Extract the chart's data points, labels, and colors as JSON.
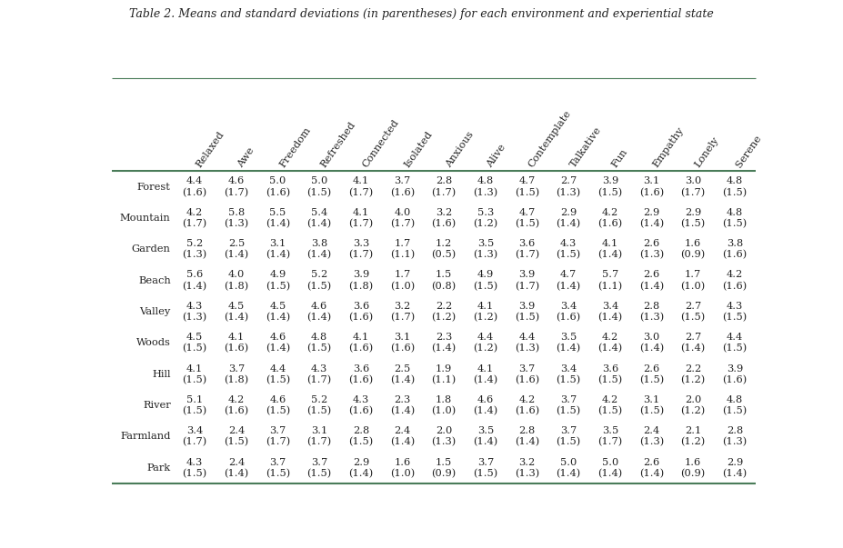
{
  "title": "Table 2. Means and standard deviations (in parentheses) for each environment and experiential state",
  "columns": [
    "Relaxed",
    "Awe",
    "Freedom",
    "Refreshed",
    "Connected",
    "Isolated",
    "Anxious",
    "Alive",
    "Contemplate",
    "Talkative",
    "Fun",
    "Empathy",
    "Lonely",
    "Serene"
  ],
  "rows": [
    "Forest",
    "Mountain",
    "Garden",
    "Beach",
    "Valley",
    "Woods",
    "Hill",
    "River",
    "Farmland",
    "Park"
  ],
  "data": [
    [
      "4.4\n(1.6)",
      "4.6\n(1.7)",
      "5.0\n(1.6)",
      "5.0\n(1.5)",
      "4.1\n(1.7)",
      "3.7\n(1.6)",
      "2.8\n(1.7)",
      "4.8\n(1.3)",
      "4.7\n(1.5)",
      "2.7\n(1.3)",
      "3.9\n(1.5)",
      "3.1\n(1.6)",
      "3.0\n(1.7)",
      "4.8\n(1.5)"
    ],
    [
      "4.2\n(1.7)",
      "5.8\n(1.3)",
      "5.5\n(1.4)",
      "5.4\n(1.4)",
      "4.1\n(1.7)",
      "4.0\n(1.7)",
      "3.2\n(1.6)",
      "5.3\n(1.2)",
      "4.7\n(1.5)",
      "2.9\n(1.4)",
      "4.2\n(1.6)",
      "2.9\n(1.4)",
      "2.9\n(1.5)",
      "4.8\n(1.5)"
    ],
    [
      "5.2\n(1.3)",
      "2.5\n(1.4)",
      "3.1\n(1.4)",
      "3.8\n(1.4)",
      "3.3\n(1.7)",
      "1.7\n(1.1)",
      "1.2\n(0.5)",
      "3.5\n(1.3)",
      "3.6\n(1.7)",
      "4.3\n(1.5)",
      "4.1\n(1.4)",
      "2.6\n(1.3)",
      "1.6\n(0.9)",
      "3.8\n(1.6)"
    ],
    [
      "5.6\n(1.4)",
      "4.0\n(1.8)",
      "4.9\n(1.5)",
      "5.2\n(1.5)",
      "3.9\n(1.8)",
      "1.7\n(1.0)",
      "1.5\n(0.8)",
      "4.9\n(1.5)",
      "3.9\n(1.7)",
      "4.7\n(1.4)",
      "5.7\n(1.1)",
      "2.6\n(1.4)",
      "1.7\n(1.0)",
      "4.2\n(1.6)"
    ],
    [
      "4.3\n(1.3)",
      "4.5\n(1.4)",
      "4.5\n(1.4)",
      "4.6\n(1.4)",
      "3.6\n(1.6)",
      "3.2\n(1.7)",
      "2.2\n(1.2)",
      "4.1\n(1.2)",
      "3.9\n(1.5)",
      "3.4\n(1.6)",
      "3.4\n(1.4)",
      "2.8\n(1.3)",
      "2.7\n(1.5)",
      "4.3\n(1.5)"
    ],
    [
      "4.5\n(1.5)",
      "4.1\n(1.6)",
      "4.6\n(1.4)",
      "4.8\n(1.5)",
      "4.1\n(1.6)",
      "3.1\n(1.6)",
      "2.3\n(1.4)",
      "4.4\n(1.2)",
      "4.4\n(1.3)",
      "3.5\n(1.4)",
      "4.2\n(1.4)",
      "3.0\n(1.4)",
      "2.7\n(1.4)",
      "4.4\n(1.5)"
    ],
    [
      "4.1\n(1.5)",
      "3.7\n(1.8)",
      "4.4\n(1.5)",
      "4.3\n(1.7)",
      "3.6\n(1.6)",
      "2.5\n(1.4)",
      "1.9\n(1.1)",
      "4.1\n(1.4)",
      "3.7\n(1.6)",
      "3.4\n(1.5)",
      "3.6\n(1.5)",
      "2.6\n(1.5)",
      "2.2\n(1.2)",
      "3.9\n(1.6)"
    ],
    [
      "5.1\n(1.5)",
      "4.2\n(1.6)",
      "4.6\n(1.5)",
      "5.2\n(1.5)",
      "4.3\n(1.6)",
      "2.3\n(1.4)",
      "1.8\n(1.0)",
      "4.6\n(1.4)",
      "4.2\n(1.6)",
      "3.7\n(1.5)",
      "4.2\n(1.5)",
      "3.1\n(1.5)",
      "2.0\n(1.2)",
      "4.8\n(1.5)"
    ],
    [
      "3.4\n(1.7)",
      "2.4\n(1.5)",
      "3.7\n(1.7)",
      "3.1\n(1.7)",
      "2.8\n(1.5)",
      "2.4\n(1.4)",
      "2.0\n(1.3)",
      "3.5\n(1.4)",
      "2.8\n(1.4)",
      "3.7\n(1.5)",
      "3.5\n(1.7)",
      "2.4\n(1.3)",
      "2.1\n(1.2)",
      "2.8\n(1.3)"
    ],
    [
      "4.3\n(1.5)",
      "2.4\n(1.4)",
      "3.7\n(1.5)",
      "3.7\n(1.5)",
      "2.9\n(1.4)",
      "1.6\n(1.0)",
      "1.5\n(0.9)",
      "3.7\n(1.5)",
      "3.2\n(1.3)",
      "5.0\n(1.4)",
      "5.0\n(1.4)",
      "2.6\n(1.4)",
      "1.6\n(0.9)",
      "2.9\n(1.4)"
    ]
  ],
  "line_color": "#4a7c59",
  "text_color": "#222222",
  "bg_color": "#ffffff",
  "font_size": 8.2,
  "header_font_size": 8.2,
  "title_font_size": 9.0
}
